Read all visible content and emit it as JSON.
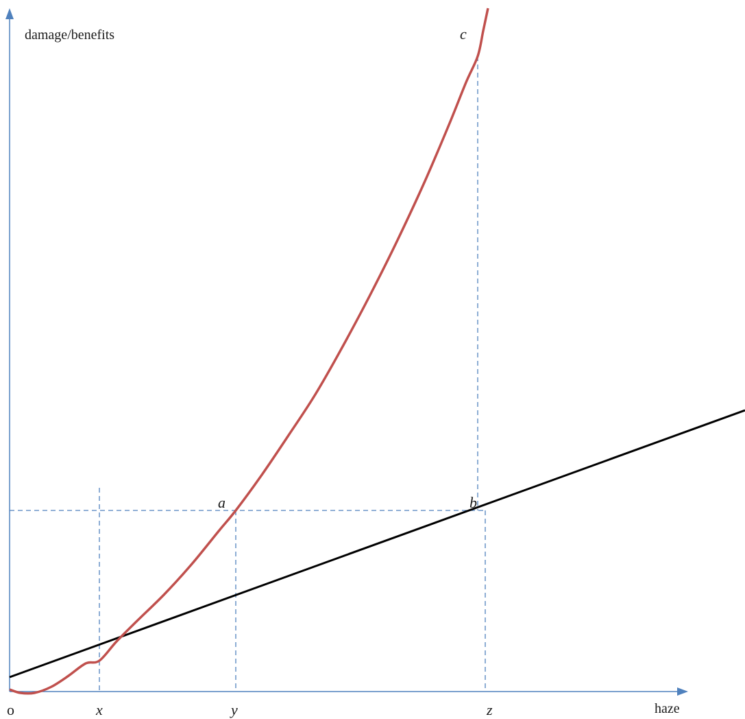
{
  "colors": {
    "axis": "#4f81bd",
    "guide": "#4f81bd",
    "curve": "#c0504d",
    "line": "#000000",
    "text": "#1a1a1a"
  },
  "axes": {
    "y_label": "damage/benefits",
    "x_label": "haze",
    "origin_label": "o"
  },
  "x_ticks": {
    "x": "x",
    "y": "y",
    "z": "z"
  },
  "points": {
    "a": "a",
    "b": "b",
    "c": "c"
  }
}
